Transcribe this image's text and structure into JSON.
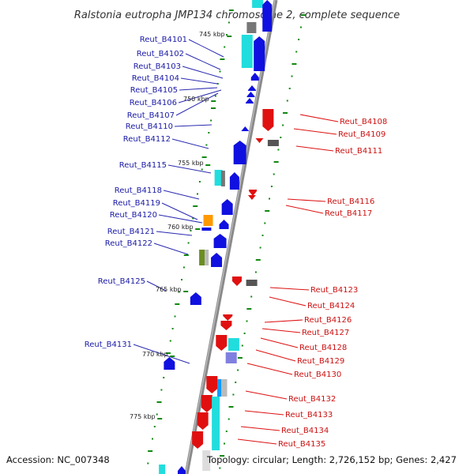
{
  "title": "Ralstonia eutropha JMP134 chromosome 2, complete sequence",
  "footer": {
    "accession": "Accession: NC_007348",
    "topology": "Topology: circular; Length: 2,726,152 bp; Genes: 2,427"
  },
  "colors": {
    "forward_gene": "#1010e0",
    "reverse_gene": "#e01010",
    "left_label": "#1a1aa6",
    "right_label": "#cc1111",
    "cyan_feature": "#22dddd",
    "orange_feature": "#ff9900",
    "olive_feature": "#6b8e23",
    "grey_feature": "#777777",
    "purple_feature": "#8080e0",
    "tick_green": "#118811",
    "backbone": "#888888"
  },
  "kbp_ticks": [
    "745 kbp",
    "750 kbp",
    "755 kbp",
    "760 kbp",
    "765 kbp",
    "770 kbp",
    "775 kbp"
  ],
  "left_labels": [
    "Reut_B4101",
    "Reut_B4102",
    "Reut_B4103",
    "Reut_B4104",
    "Reut_B4105",
    "Reut_B4106",
    "Reut_B4107",
    "Reut_B4110",
    "Reut_B4112",
    "Reut_B4115",
    "Reut_B4118",
    "Reut_B4119",
    "Reut_B4120",
    "Reut_B4121",
    "Reut_B4122",
    "Reut_B4125",
    "Reut_B4131"
  ],
  "right_labels": [
    "Reut_B4108",
    "Reut_B4109",
    "Reut_B4111",
    "Reut_B4116",
    "Reut_B4117",
    "Reut_B4123",
    "Reut_B4124",
    "Reut_B4126",
    "Reut_B4127",
    "Reut_B4128",
    "Reut_B4129",
    "Reut_B4130",
    "Reut_B4132",
    "Reut_B4133",
    "Reut_B4134",
    "Reut_B4135"
  ]
}
